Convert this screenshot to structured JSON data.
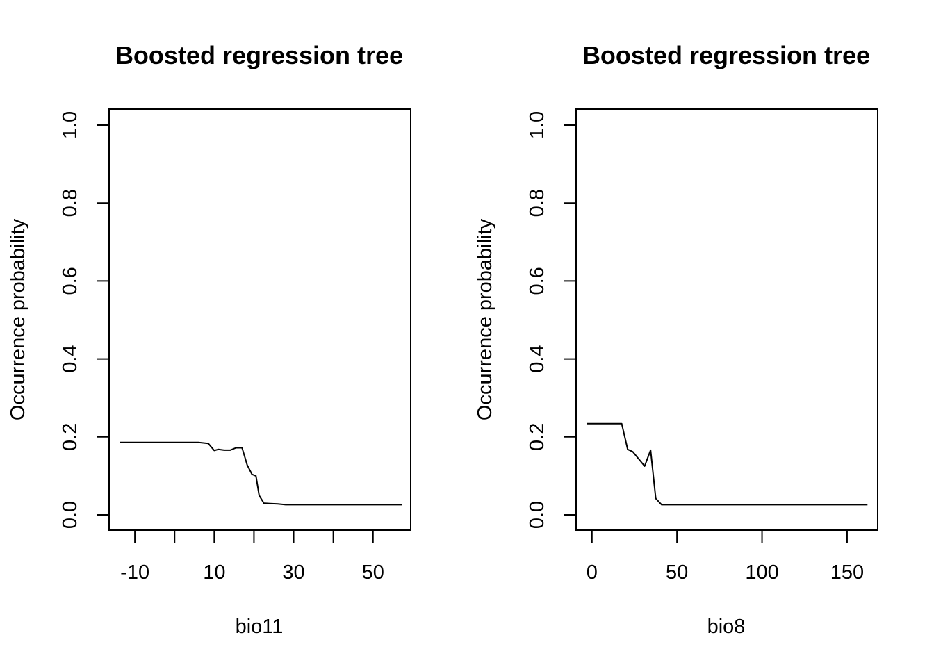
{
  "chart_data": [
    {
      "type": "line",
      "title": "Boosted regression tree",
      "xlabel": "bio11",
      "ylabel": "Occurrence probability",
      "xlim": [
        -16.5,
        59.5
      ],
      "ylim": [
        0,
        1
      ],
      "xticks": [
        -10,
        0,
        10,
        20,
        30,
        40,
        50
      ],
      "xtick_labels": [
        "-10",
        "",
        "10",
        "",
        "30",
        "",
        "50"
      ],
      "yticks": [
        0,
        0.2,
        0.4,
        0.6,
        0.8,
        1.0
      ],
      "ytick_labels": [
        "0.0",
        "0.2",
        "0.4",
        "0.6",
        "0.8",
        "1.0"
      ],
      "grid": false,
      "series": [
        {
          "x": [
            -13.7,
            -12,
            -8,
            -4,
            0,
            4,
            6,
            8.5,
            10,
            11,
            12.5,
            14,
            15.5,
            17,
            18.3,
            19.5,
            20.5,
            21.3,
            22.5,
            24,
            26,
            28,
            32,
            36,
            40,
            44,
            48,
            52,
            57.3
          ],
          "y": [
            0.186,
            0.186,
            0.186,
            0.186,
            0.186,
            0.186,
            0.186,
            0.183,
            0.165,
            0.168,
            0.166,
            0.166,
            0.172,
            0.172,
            0.128,
            0.104,
            0.1,
            0.05,
            0.03,
            0.029,
            0.028,
            0.026,
            0.026,
            0.026,
            0.026,
            0.026,
            0.026,
            0.026,
            0.026
          ]
        }
      ]
    },
    {
      "type": "line",
      "title": "Boosted regression tree",
      "xlabel": "bio8",
      "ylabel": "Occurrence probability",
      "xlim": [
        -9.3,
        168
      ],
      "ylim": [
        0,
        1
      ],
      "xticks": [
        0,
        50,
        100,
        150
      ],
      "xtick_labels": [
        "0",
        "50",
        "100",
        "150"
      ],
      "yticks": [
        0,
        0.2,
        0.4,
        0.6,
        0.8,
        1.0
      ],
      "ytick_labels": [
        "0.0",
        "0.2",
        "0.4",
        "0.6",
        "0.8",
        "1.0"
      ],
      "grid": false,
      "series": [
        {
          "x": [
            -3,
            5,
            12,
            17.5,
            21,
            24,
            27,
            31,
            34.5,
            37.5,
            41,
            50,
            80,
            110,
            140,
            162
          ],
          "y": [
            0.234,
            0.234,
            0.234,
            0.234,
            0.168,
            0.162,
            0.146,
            0.125,
            0.166,
            0.042,
            0.026,
            0.026,
            0.026,
            0.026,
            0.026,
            0.026
          ]
        }
      ]
    }
  ]
}
